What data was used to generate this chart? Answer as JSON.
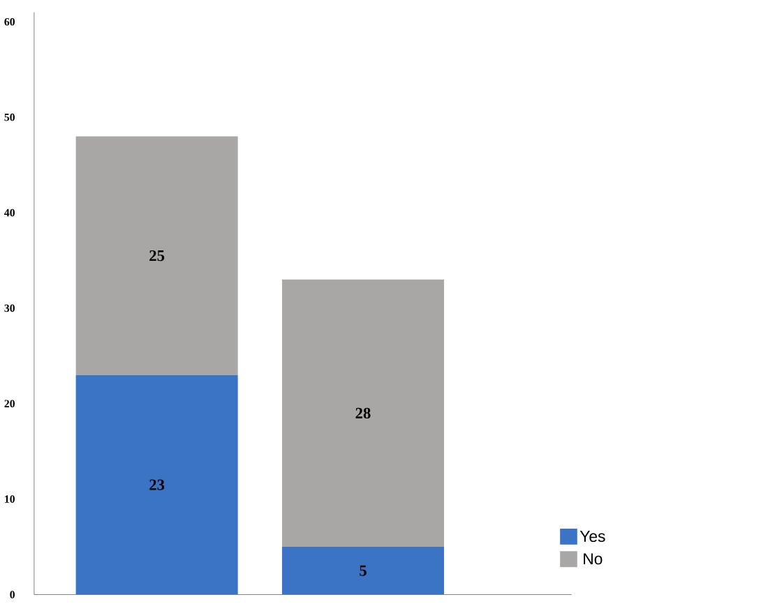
{
  "chart_data": {
    "type": "bar",
    "stacked": true,
    "categories": [
      null,
      null
    ],
    "series": [
      {
        "name": "Yes",
        "color": "#3b74c5",
        "values": [
          23,
          5
        ]
      },
      {
        "name": "No",
        "color": "#a9a6a6",
        "values": [
          25,
          28
        ]
      }
    ],
    "ylim": [
      0,
      61
    ],
    "yticks": [
      0,
      10,
      20,
      30,
      40,
      50,
      60
    ],
    "data_labels": true,
    "legend": "bottom right",
    "grid": false
  }
}
